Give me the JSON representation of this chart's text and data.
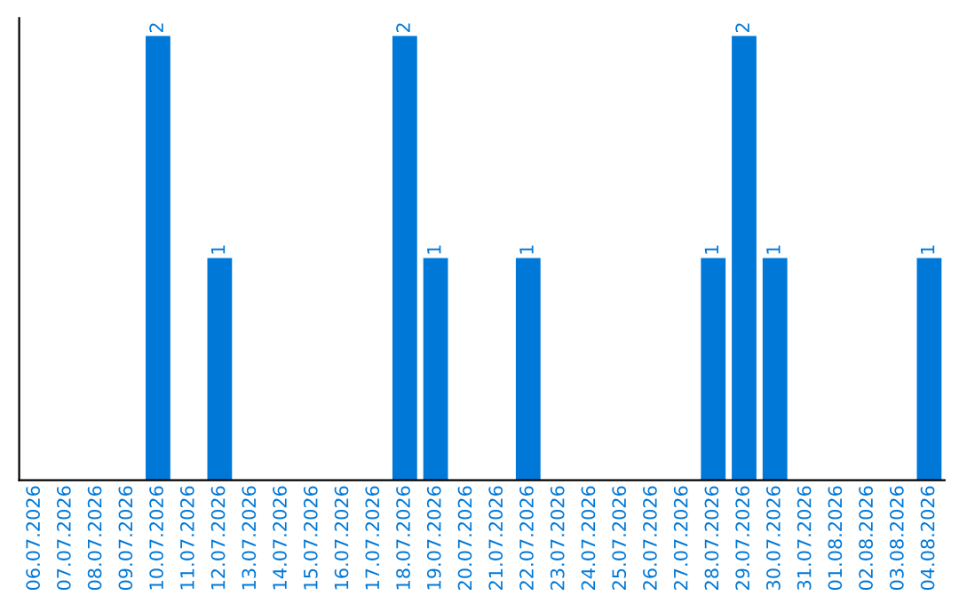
{
  "chart_data": {
    "type": "bar",
    "categories": [
      "06.07.2026",
      "07.07.2026",
      "08.07.2026",
      "09.07.2026",
      "10.07.2026",
      "11.07.2026",
      "12.07.2026",
      "13.07.2026",
      "14.07.2026",
      "15.07.2026",
      "16.07.2026",
      "17.07.2026",
      "18.07.2026",
      "19.07.2026",
      "20.07.2026",
      "21.07.2026",
      "22.07.2026",
      "23.07.2026",
      "24.07.2026",
      "25.07.2026",
      "26.07.2026",
      "27.07.2026",
      "28.07.2026",
      "29.07.2026",
      "30.07.2026",
      "31.07.2026",
      "01.08.2026",
      "02.08.2026",
      "03.08.2026",
      "04.08.2026"
    ],
    "values": [
      0,
      0,
      0,
      0,
      2,
      0,
      1,
      0,
      0,
      0,
      0,
      0,
      2,
      1,
      0,
      0,
      1,
      0,
      0,
      0,
      0,
      0,
      1,
      2,
      1,
      0,
      0,
      0,
      0,
      1
    ],
    "value_labels": [
      null,
      null,
      null,
      null,
      "2",
      null,
      "1",
      null,
      null,
      null,
      null,
      null,
      "2",
      "1",
      null,
      null,
      "1",
      null,
      null,
      null,
      null,
      null,
      "1",
      "2",
      "1",
      null,
      null,
      null,
      null,
      "1"
    ],
    "color": "#0078d7",
    "ylim": [
      0,
      2.08
    ],
    "tick_labels": "x",
    "grid": false,
    "legend": false
  }
}
